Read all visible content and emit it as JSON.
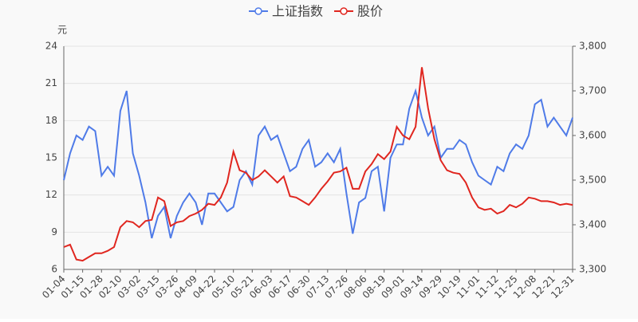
{
  "chart_data": {
    "type": "line",
    "y_unit": "元",
    "categories": [
      "01-04",
      null,
      null,
      "01-15",
      null,
      null,
      "01-28",
      null,
      null,
      "02-10",
      null,
      null,
      "03-02",
      null,
      null,
      "03-15",
      null,
      null,
      "03-26",
      null,
      null,
      "04-09",
      null,
      null,
      "04-22",
      null,
      null,
      "05-10",
      null,
      null,
      "05-21",
      null,
      null,
      "06-03",
      null,
      null,
      "06-17",
      null,
      null,
      "06-30",
      null,
      null,
      "07-13",
      null,
      null,
      "07-26",
      null,
      null,
      "08-06",
      null,
      null,
      "08-19",
      null,
      null,
      "09-01",
      null,
      null,
      "09-14",
      null,
      null,
      "09-29",
      null,
      null,
      "10-19",
      null,
      null,
      "11-01",
      null,
      null,
      "11-12",
      null,
      null,
      "11-25",
      null,
      null,
      "12-08",
      null,
      null,
      "12-21",
      null,
      null,
      "12-31"
    ],
    "series": [
      {
        "name": "上证指数",
        "color": "#4f7be8",
        "axis": "y2",
        "values": [
          3500,
          3560,
          3600,
          3590,
          3620,
          3610,
          3510,
          3530,
          3510,
          3655,
          3700,
          3560,
          3510,
          3450,
          3370,
          3420,
          3440,
          3370,
          3420,
          3450,
          3470,
          3450,
          3400,
          3470,
          3470,
          3450,
          3430,
          3440,
          3500,
          3520,
          3490,
          3600,
          3620,
          3590,
          3600,
          3560,
          3520,
          3530,
          3570,
          3590,
          3530,
          3540,
          3560,
          3540,
          3570,
          3470,
          3380,
          3450,
          3460,
          3520,
          3530,
          3430,
          3550,
          3580,
          3580,
          3660,
          3700,
          3640,
          3600,
          3620,
          3550,
          3570,
          3570,
          3590,
          3580,
          3540,
          3510,
          3500,
          3490,
          3530,
          3520,
          3560,
          3580,
          3570,
          3600,
          3670,
          3680,
          3620,
          3640,
          3620,
          3600,
          3640
        ]
      },
      {
        "name": "股价",
        "color": "#e0261f",
        "values": [
          7.8,
          8.0,
          6.8,
          6.7,
          7.0,
          7.3,
          7.3,
          7.5,
          7.8,
          9.4,
          9.9,
          9.8,
          9.4,
          9.9,
          10.0,
          11.8,
          11.5,
          9.5,
          9.8,
          9.9,
          10.3,
          10.5,
          10.8,
          11.3,
          11.2,
          11.8,
          13.0,
          15.5,
          14.0,
          13.8,
          13.2,
          13.5,
          14.0,
          13.5,
          13.0,
          13.5,
          11.9,
          11.8,
          11.5,
          11.2,
          11.8,
          12.5,
          13.1,
          13.8,
          13.9,
          14.2,
          12.5,
          12.5,
          13.9,
          14.5,
          15.3,
          14.9,
          15.5,
          17.5,
          16.8,
          16.5,
          17.5,
          22.3,
          19.0,
          16.5,
          14.8,
          14.0,
          13.8,
          13.7,
          13.0,
          11.8,
          11.0,
          10.8,
          10.9,
          10.5,
          10.7,
          11.2,
          11.0,
          11.3,
          11.8,
          11.7,
          11.5,
          11.5,
          11.4,
          11.2,
          11.3,
          11.2
        ]
      }
    ],
    "ylim": [
      6,
      24
    ],
    "yticks": [
      6,
      9,
      12,
      15,
      18,
      21,
      24
    ],
    "y2lim": [
      3300,
      3800
    ],
    "y2ticks": [
      {
        "value": 3300,
        "label": "3,300"
      },
      {
        "value": 3400,
        "label": "3,400"
      },
      {
        "value": 3500,
        "label": "3,500"
      },
      {
        "value": 3600,
        "label": "3,600"
      },
      {
        "value": 3700,
        "label": "3,700"
      },
      {
        "value": 3800,
        "label": "3,800"
      }
    ],
    "grid": true,
    "legend": "top"
  }
}
